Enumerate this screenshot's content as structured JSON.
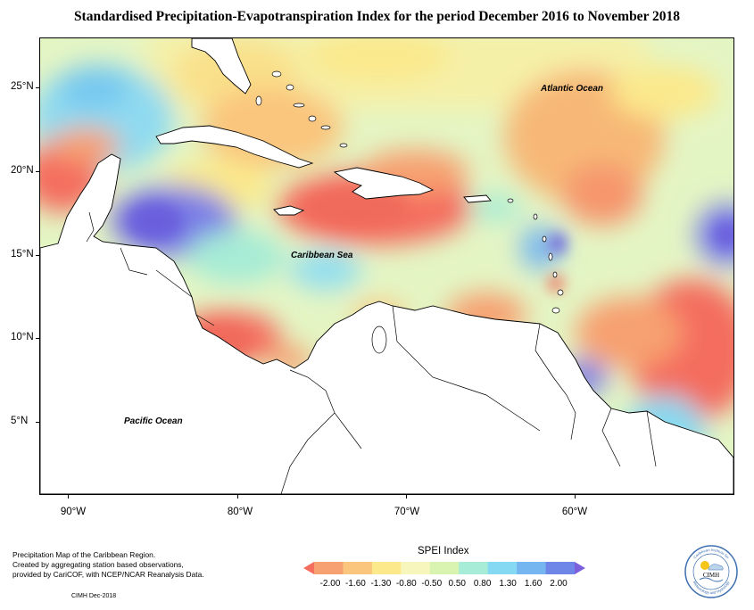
{
  "title": "Standardised Precipitation-Evapotranspiration Index for the period December 2016 to November 2018",
  "labels": {
    "atlantic": "Atlantic Ocean",
    "caribbean": "Caribbean Sea",
    "pacific": "Pacific Ocean"
  },
  "latitudes": [
    "25°N",
    "20°N",
    "15°N",
    "10°N",
    "5°N"
  ],
  "longitudes": [
    "90°W",
    "80°W",
    "70°W",
    "60°W"
  ],
  "legend": {
    "title": "SPEI Index",
    "values": [
      "-2.00",
      "-1.60",
      "-1.30",
      "-0.80",
      "-0.50",
      "0.50",
      "0.80",
      "1.30",
      "1.60",
      "2.00"
    ],
    "colors": [
      "#f46d5e",
      "#f7a071",
      "#fac57d",
      "#fbe98c",
      "#f7f6bc",
      "#d9f3b0",
      "#a6ecd6",
      "#86d9f2",
      "#76b6f0",
      "#6e86e8",
      "#7c5fdc"
    ]
  },
  "notes": {
    "line1": "Precipitation Map of the Caribbean Region.",
    "line2": "Created by aggregating station based observations,",
    "line3": "provided by CariCOF, with NCEP/NCAR Reanalysis Data.",
    "credit": "CIMH Dec-2018"
  },
  "logo": {
    "top_text": "Caribbean Institute for",
    "center_text": "CIMH",
    "bottom_text": "Meteorology and Hydrology"
  }
}
